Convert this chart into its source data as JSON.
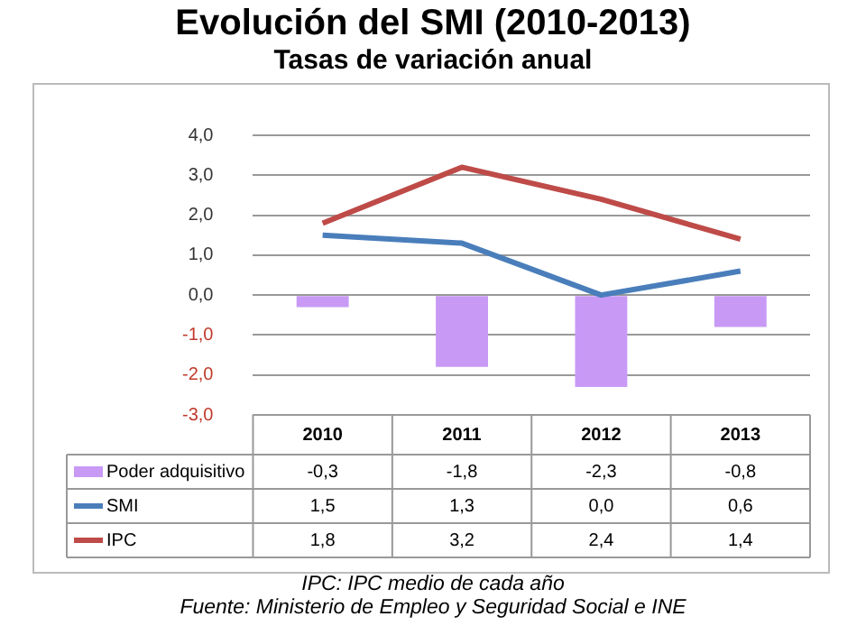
{
  "chart_data": {
    "type": "bar",
    "title": "Evolución del SMI (2010-2013)",
    "subtitle": "Tasas de variación anual",
    "categories": [
      "2010",
      "2011",
      "2012",
      "2013"
    ],
    "series": [
      {
        "name": "Poder adquisitivo",
        "color": "#c89af5",
        "values": [
          -0.3,
          -1.8,
          -2.3,
          -0.8
        ],
        "value_labels": [
          "-0,3",
          "-1,8",
          "-2,3",
          "-0,8"
        ]
      },
      {
        "name": "SMI",
        "type": "line",
        "color": "#4a7ebb",
        "values": [
          1.5,
          1.3,
          0.0,
          0.6
        ],
        "value_labels": [
          "1,5",
          "1,3",
          "0,0",
          "0,6"
        ]
      },
      {
        "name": "IPC",
        "type": "line",
        "color": "#be4b48",
        "values": [
          1.8,
          3.2,
          2.4,
          1.4
        ],
        "value_labels": [
          "1,8",
          "3,2",
          "2,4",
          "1,4"
        ]
      }
    ],
    "ylim": [
      -3,
      4
    ],
    "yticks": [
      {
        "value": -3,
        "label": "-3,0"
      },
      {
        "value": -2,
        "label": "-2,0"
      },
      {
        "value": -1,
        "label": "-1,0"
      },
      {
        "value": 0,
        "label": "0,0"
      },
      {
        "value": 1,
        "label": "1,0"
      },
      {
        "value": 2,
        "label": "2,0"
      },
      {
        "value": 3,
        "label": "3,0"
      },
      {
        "value": 4,
        "label": "4,0"
      }
    ],
    "grid": "y",
    "legend": "bottom left",
    "marker": "none",
    "line_style": "solid",
    "annotations": [
      "IPC: IPC medio de cada año",
      "Fuente: Ministerio de Empleo y Seguridad Social e INE"
    ]
  }
}
